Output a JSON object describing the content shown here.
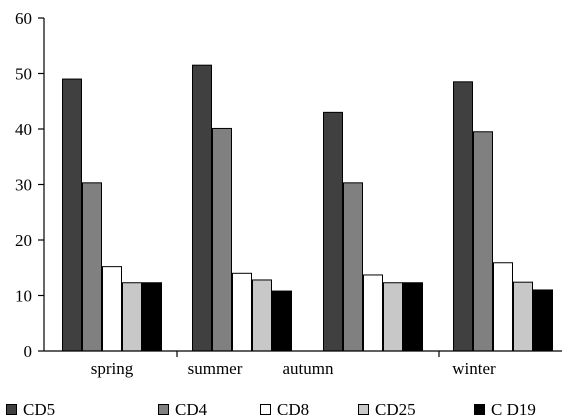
{
  "chart_data": {
    "type": "bar",
    "categories": [
      "spring",
      "summer",
      "autumn",
      "winter"
    ],
    "ylim": [
      0,
      60
    ],
    "yticks": [
      0,
      10,
      20,
      30,
      40,
      50,
      60
    ],
    "grid": false,
    "legend_position": "bottom",
    "series": [
      {
        "name": "CD5",
        "color": "#404040",
        "values": [
          49.0,
          51.5,
          43.0,
          48.5
        ]
      },
      {
        "name": "CD4",
        "color": "#808080",
        "values": [
          30.3,
          40.1,
          30.3,
          39.5
        ]
      },
      {
        "name": "CD8",
        "color": "#ffffff",
        "values": [
          15.2,
          14.0,
          13.7,
          15.9
        ]
      },
      {
        "name": "CD25",
        "color": "#c8c8c8",
        "values": [
          12.3,
          12.8,
          12.3,
          12.4
        ]
      },
      {
        "name": "C D19",
        "color": "#000000",
        "values": [
          12.3,
          10.8,
          12.3,
          11.0
        ]
      }
    ]
  }
}
